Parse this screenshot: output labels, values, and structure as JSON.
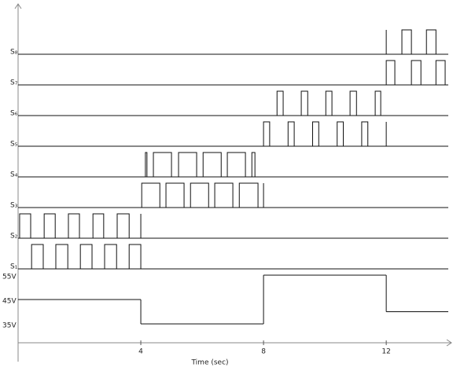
{
  "chart_data": {
    "type": "timing",
    "x_label": "Time (sec)",
    "xlim": [
      0,
      14.15
    ],
    "xticks": [
      4,
      8,
      12
    ],
    "lanes": [
      {
        "name": "S₈",
        "pulses": [
          [
            12,
            12
          ],
          [
            12.51,
            12.82
          ],
          [
            13.31,
            13.62
          ]
        ]
      },
      {
        "name": "S₇",
        "pulses": [
          [
            12,
            12.28
          ],
          [
            12.82,
            13.13
          ],
          [
            13.62,
            13.92
          ]
        ]
      },
      {
        "name": "S₆",
        "pulses": [
          [
            8.44,
            8.64
          ],
          [
            9.23,
            9.44
          ],
          [
            10.03,
            10.23
          ],
          [
            10.82,
            11.03
          ],
          [
            11.64,
            11.82
          ]
        ]
      },
      {
        "name": "S₅",
        "pulses": [
          [
            8,
            8.2
          ],
          [
            8.8,
            9
          ],
          [
            9.6,
            9.8
          ],
          [
            10.4,
            10.6
          ],
          [
            11.2,
            11.4
          ],
          [
            12,
            12
          ]
        ]
      },
      {
        "name": "S₄",
        "pulses": [
          [
            4.15,
            4.2
          ],
          [
            4.41,
            5
          ],
          [
            5.23,
            5.82
          ],
          [
            6.03,
            6.62
          ],
          [
            6.82,
            7.41
          ],
          [
            7.62,
            7.72
          ]
        ]
      },
      {
        "name": "S₃",
        "pulses": [
          [
            4.03,
            4.62
          ],
          [
            4.82,
            5.41
          ],
          [
            5.62,
            6.21
          ],
          [
            6.41,
            7
          ],
          [
            7.21,
            7.82
          ],
          [
            8,
            8
          ]
        ]
      },
      {
        "name": "S₂",
        "pulses": [
          [
            0.05,
            0.41
          ],
          [
            0.85,
            1.21
          ],
          [
            1.64,
            2
          ],
          [
            2.44,
            2.79
          ],
          [
            3.23,
            3.62
          ],
          [
            4,
            4
          ]
        ]
      },
      {
        "name": "S₁",
        "pulses": [
          [
            0.44,
            0.82
          ],
          [
            1.23,
            1.62
          ],
          [
            2.03,
            2.41
          ],
          [
            2.82,
            3.21
          ],
          [
            3.62,
            4
          ]
        ]
      }
    ],
    "voltage": {
      "x": [
        0,
        4,
        8,
        12
      ],
      "values": [
        45,
        35,
        55,
        40
      ],
      "ylim": [
        35,
        55
      ],
      "yticks": [
        {
          "value": 55,
          "label": "55V"
        },
        {
          "value": 45,
          "label": "45V"
        },
        {
          "value": 35,
          "label": "35V"
        }
      ]
    }
  }
}
